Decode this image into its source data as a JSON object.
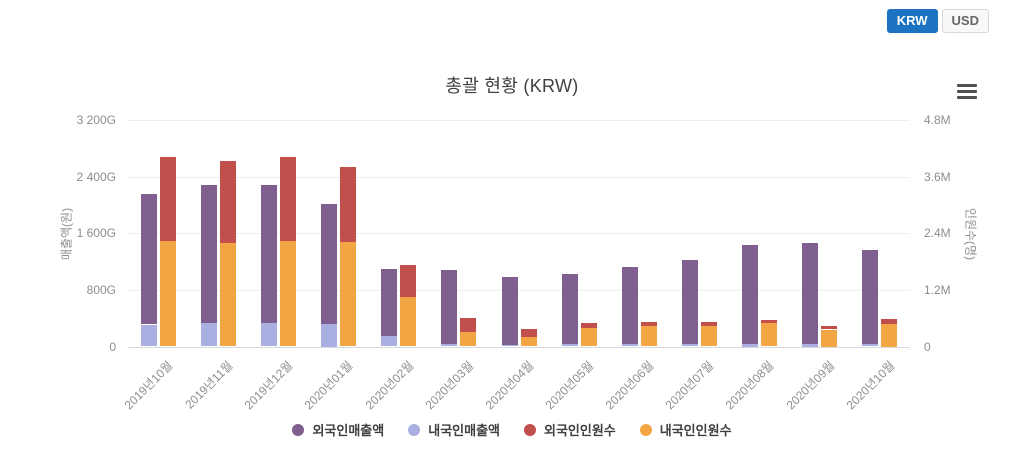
{
  "toolbar": {
    "currencies": [
      {
        "label": "KRW",
        "active": true
      },
      {
        "label": "USD",
        "active": false
      }
    ],
    "accent_color": "#1b73c1"
  },
  "chart": {
    "menu_icon": "hamburger-menu-icon"
  },
  "chart_data": {
    "type": "bar",
    "stacked": true,
    "title": "총괄 현황 (KRW)",
    "categories": [
      "2019년10월",
      "2019년11월",
      "2019년12월",
      "2020년01월",
      "2020년02월",
      "2020년03월",
      "2020년04월",
      "2020년05월",
      "2020년06월",
      "2020년07월",
      "2020년08월",
      "2020년09월",
      "2020년10월"
    ],
    "left_axis": {
      "label": "매출액(원)",
      "max": 3200,
      "min": 0,
      "unit": "G",
      "ticks": [
        "3 200G",
        "2 400G",
        "1 600G",
        "800G",
        "0"
      ]
    },
    "right_axis": {
      "label": "인원수(명)",
      "max": 4.8,
      "min": 0,
      "unit": "M",
      "ticks": [
        "4.8M",
        "3.6M",
        "2.4M",
        "1.2M",
        "0"
      ]
    },
    "series": [
      {
        "id": "foreign-sales",
        "name": "외국인매출액",
        "color": "#7e5f8f",
        "axis": "left",
        "stack": "sales",
        "order": 1,
        "values": [
          1850,
          1950,
          1950,
          1690,
          950,
          1050,
          955,
          1000,
          1080,
          1180,
          1395,
          1425,
          1320
        ]
      },
      {
        "id": "domestic-sales",
        "name": "내국인매출액",
        "color": "#a9afe0",
        "axis": "left",
        "stack": "sales",
        "order": 0,
        "values": [
          310,
          330,
          330,
          320,
          150,
          30,
          25,
          30,
          40,
          40,
          35,
          35,
          40
        ]
      },
      {
        "id": "foreign-count",
        "name": "외국인인원수",
        "color": "#c14f4c",
        "axis": "right",
        "stack": "count",
        "order": 1,
        "values": [
          1.78,
          1.74,
          1.77,
          1.6,
          0.69,
          0.29,
          0.16,
          0.11,
          0.1,
          0.09,
          0.07,
          0.08,
          0.11
        ]
      },
      {
        "id": "domestic-count",
        "name": "내국인인원수",
        "color": "#f4a543",
        "axis": "right",
        "stack": "count",
        "order": 0,
        "values": [
          2.24,
          2.19,
          2.24,
          2.21,
          1.04,
          0.31,
          0.21,
          0.39,
          0.43,
          0.43,
          0.5,
          0.36,
          0.48
        ]
      }
    ],
    "legend_position": "bottom",
    "grid": "horizontal"
  }
}
